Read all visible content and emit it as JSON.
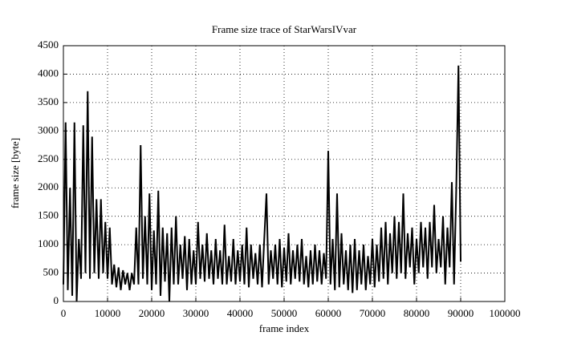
{
  "chart_data": {
    "type": "line",
    "title": "Frame size trace of StarWarsIVvar",
    "xlabel": "frame index",
    "ylabel": "frame size [byte]",
    "xlim": [
      0,
      100000
    ],
    "ylim": [
      0,
      4500
    ],
    "xticks": [
      0,
      10000,
      20000,
      30000,
      40000,
      50000,
      60000,
      70000,
      80000,
      90000,
      100000
    ],
    "yticks": [
      0,
      500,
      1000,
      1500,
      2000,
      2500,
      3000,
      3500,
      4000,
      4500
    ],
    "grid": true,
    "color": "#000000",
    "x": [
      0,
      500,
      1000,
      1500,
      2000,
      2500,
      3000,
      3500,
      4000,
      4500,
      5000,
      5500,
      6000,
      6500,
      7000,
      7500,
      8000,
      8500,
      9000,
      9500,
      10000,
      10500,
      11000,
      11500,
      12000,
      12500,
      13000,
      13500,
      14000,
      14500,
      15000,
      15500,
      16000,
      16500,
      17000,
      17500,
      18000,
      18500,
      19000,
      19500,
      20000,
      20500,
      21000,
      21500,
      22000,
      22500,
      23000,
      23500,
      24000,
      24500,
      25000,
      25500,
      26000,
      26500,
      27000,
      27500,
      28000,
      28500,
      29000,
      29500,
      30000,
      30500,
      31000,
      31500,
      32000,
      32500,
      33000,
      33500,
      34000,
      34500,
      35000,
      35500,
      36000,
      36500,
      37000,
      37500,
      38000,
      38500,
      39000,
      39500,
      40000,
      40500,
      41000,
      41500,
      42000,
      42500,
      43000,
      43500,
      44000,
      44500,
      45000,
      45500,
      46000,
      46500,
      47000,
      47500,
      48000,
      48500,
      49000,
      49500,
      50000,
      50500,
      51000,
      51500,
      52000,
      52500,
      53000,
      53500,
      54000,
      54500,
      55000,
      55500,
      56000,
      56500,
      57000,
      57500,
      58000,
      58500,
      59000,
      59500,
      60000,
      60500,
      61000,
      61500,
      62000,
      62500,
      63000,
      63500,
      64000,
      64500,
      65000,
      65500,
      66000,
      66500,
      67000,
      67500,
      68000,
      68500,
      69000,
      69500,
      70000,
      70500,
      71000,
      71500,
      72000,
      72500,
      73000,
      73500,
      74000,
      74500,
      75000,
      75500,
      76000,
      76500,
      77000,
      77500,
      78000,
      78500,
      79000,
      79500,
      80000,
      80500,
      81000,
      81500,
      82000,
      82500,
      83000,
      83500,
      84000,
      84500,
      85000,
      85500,
      86000,
      86500,
      87000,
      87500,
      88000,
      88500,
      89000,
      89500,
      90000
    ],
    "values": [
      300,
      3150,
      200,
      2000,
      100,
      3150,
      0,
      1100,
      400,
      3100,
      500,
      3700,
      400,
      2900,
      500,
      1800,
      400,
      1800,
      500,
      1400,
      400,
      1300,
      300,
      650,
      250,
      600,
      200,
      550,
      300,
      500,
      200,
      500,
      300,
      1300,
      300,
      2750,
      400,
      1500,
      300,
      1900,
      200,
      1250,
      300,
      1950,
      100,
      1300,
      350,
      1200,
      0,
      1300,
      300,
      1500,
      300,
      1000,
      400,
      1150,
      200,
      1100,
      300,
      900,
      300,
      1400,
      400,
      1000,
      350,
      1200,
      400,
      900,
      300,
      1100,
      400,
      900,
      300,
      1350,
      300,
      800,
      350,
      1100,
      300,
      900,
      350,
      1000,
      300,
      1300,
      250,
      1000,
      400,
      850,
      300,
      1000,
      250,
      1100,
      1900,
      300,
      900,
      400,
      1000,
      300,
      1100,
      250,
      950,
      350,
      1200,
      300,
      900,
      400,
      1000,
      350,
      1100,
      300,
      800,
      250,
      900,
      300,
      1000,
      350,
      900,
      300,
      850,
      400,
      2650,
      300,
      1100,
      200,
      1900,
      250,
      1200,
      300,
      900,
      200,
      1000,
      150,
      1100,
      200,
      900,
      300,
      1000,
      200,
      800,
      300,
      1100,
      250,
      1000,
      350,
      1300,
      400,
      1400,
      300,
      1200,
      500,
      1500,
      400,
      1400,
      500,
      1900,
      400,
      1200,
      600,
      1300,
      300,
      1100,
      500,
      1400,
      600,
      1300,
      400,
      1400,
      600,
      1700,
      500,
      1100,
      600,
      1500,
      300,
      1300,
      600,
      2100,
      300,
      2000,
      4150,
      700
    ]
  }
}
